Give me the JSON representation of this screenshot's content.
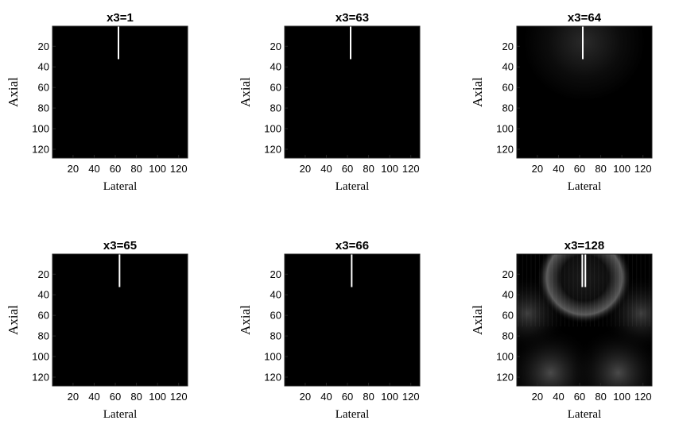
{
  "chart_data": [
    {
      "type": "heatmap",
      "title": "x3=1",
      "xlabel": "Lateral",
      "ylabel": "Axial",
      "x_ticks": [
        20,
        40,
        60,
        80,
        100,
        120
      ],
      "x_tick_labels": [
        "20",
        "40",
        "60",
        "80",
        "100",
        "120"
      ],
      "y_ticks": [
        20,
        40,
        60,
        80,
        100,
        120
      ],
      "y_tick_labels": [
        "20",
        "40",
        "60",
        "80",
        "100",
        "120"
      ],
      "xlim": [
        0.5,
        128.5
      ],
      "ylim": [
        0.5,
        128.5
      ],
      "y_reversed": true,
      "colormap": "gray",
      "highlight": {
        "x": 63,
        "y_start": 1,
        "y_end": 32,
        "pairs": 1
      },
      "background": "black"
    },
    {
      "type": "heatmap",
      "title": "x3=63",
      "xlabel": "Lateral",
      "ylabel": "Axial",
      "x_ticks": [
        20,
        40,
        60,
        80,
        100,
        120
      ],
      "x_tick_labels": [
        "20",
        "40",
        "60",
        "80",
        "100",
        "120"
      ],
      "y_ticks": [
        20,
        40,
        60,
        80,
        100,
        120
      ],
      "y_tick_labels": [
        "20",
        "40",
        "60",
        "80",
        "100",
        "120"
      ],
      "xlim": [
        0.5,
        128.5
      ],
      "ylim": [
        0.5,
        128.5
      ],
      "y_reversed": true,
      "colormap": "gray",
      "highlight": {
        "x": 63,
        "y_start": 1,
        "y_end": 32,
        "pairs": 1
      },
      "background": "black"
    },
    {
      "type": "heatmap",
      "title": "x3=64",
      "xlabel": "Lateral",
      "ylabel": "Axial",
      "x_ticks": [
        20,
        40,
        60,
        80,
        100,
        120
      ],
      "x_tick_labels": [
        "20",
        "40",
        "60",
        "80",
        "100",
        "120"
      ],
      "y_ticks": [
        20,
        40,
        60,
        80,
        100,
        120
      ],
      "y_tick_labels": [
        "20",
        "40",
        "60",
        "80",
        "100",
        "120"
      ],
      "xlim": [
        0.5,
        128.5
      ],
      "ylim": [
        0.5,
        128.5
      ],
      "y_reversed": true,
      "colormap": "gray",
      "highlight": {
        "x": 63,
        "y_start": 1,
        "y_end": 32,
        "pairs": 1
      },
      "background": "black-faint-glow"
    },
    {
      "type": "heatmap",
      "title": "x3=65",
      "xlabel": "Lateral",
      "ylabel": "Axial",
      "x_ticks": [
        20,
        40,
        60,
        80,
        100,
        120
      ],
      "x_tick_labels": [
        "20",
        "40",
        "60",
        "80",
        "100",
        "120"
      ],
      "y_ticks": [
        20,
        40,
        60,
        80,
        100,
        120
      ],
      "y_tick_labels": [
        "20",
        "40",
        "60",
        "80",
        "100",
        "120"
      ],
      "xlim": [
        0.5,
        128.5
      ],
      "ylim": [
        0.5,
        128.5
      ],
      "y_reversed": true,
      "colormap": "gray",
      "highlight": {
        "x": 64,
        "y_start": 1,
        "y_end": 32,
        "pairs": 1
      },
      "background": "black"
    },
    {
      "type": "heatmap",
      "title": "x3=66",
      "xlabel": "Lateral",
      "ylabel": "Axial",
      "x_ticks": [
        20,
        40,
        60,
        80,
        100,
        120
      ],
      "x_tick_labels": [
        "20",
        "40",
        "60",
        "80",
        "100",
        "120"
      ],
      "y_ticks": [
        20,
        40,
        60,
        80,
        100,
        120
      ],
      "y_tick_labels": [
        "20",
        "40",
        "60",
        "80",
        "100",
        "120"
      ],
      "xlim": [
        0.5,
        128.5
      ],
      "ylim": [
        0.5,
        128.5
      ],
      "y_reversed": true,
      "colormap": "gray",
      "highlight": {
        "x": 64,
        "y_start": 1,
        "y_end": 32,
        "pairs": 1
      },
      "background": "black"
    },
    {
      "type": "heatmap",
      "title": "x3=128",
      "xlabel": "Lateral",
      "ylabel": "Axial",
      "x_ticks": [
        20,
        40,
        60,
        80,
        100,
        120
      ],
      "x_tick_labels": [
        "20",
        "40",
        "60",
        "80",
        "100",
        "120"
      ],
      "y_ticks": [
        20,
        40,
        60,
        80,
        100,
        120
      ],
      "y_tick_labels": [
        "20",
        "40",
        "60",
        "80",
        "100",
        "120"
      ],
      "xlim": [
        0.5,
        128.5
      ],
      "ylim": [
        0.5,
        128.5
      ],
      "y_reversed": true,
      "colormap": "gray",
      "highlight": {
        "x": 64,
        "y_start": 1,
        "y_end": 32,
        "pairs": 2
      },
      "background": "interference-pattern"
    }
  ]
}
